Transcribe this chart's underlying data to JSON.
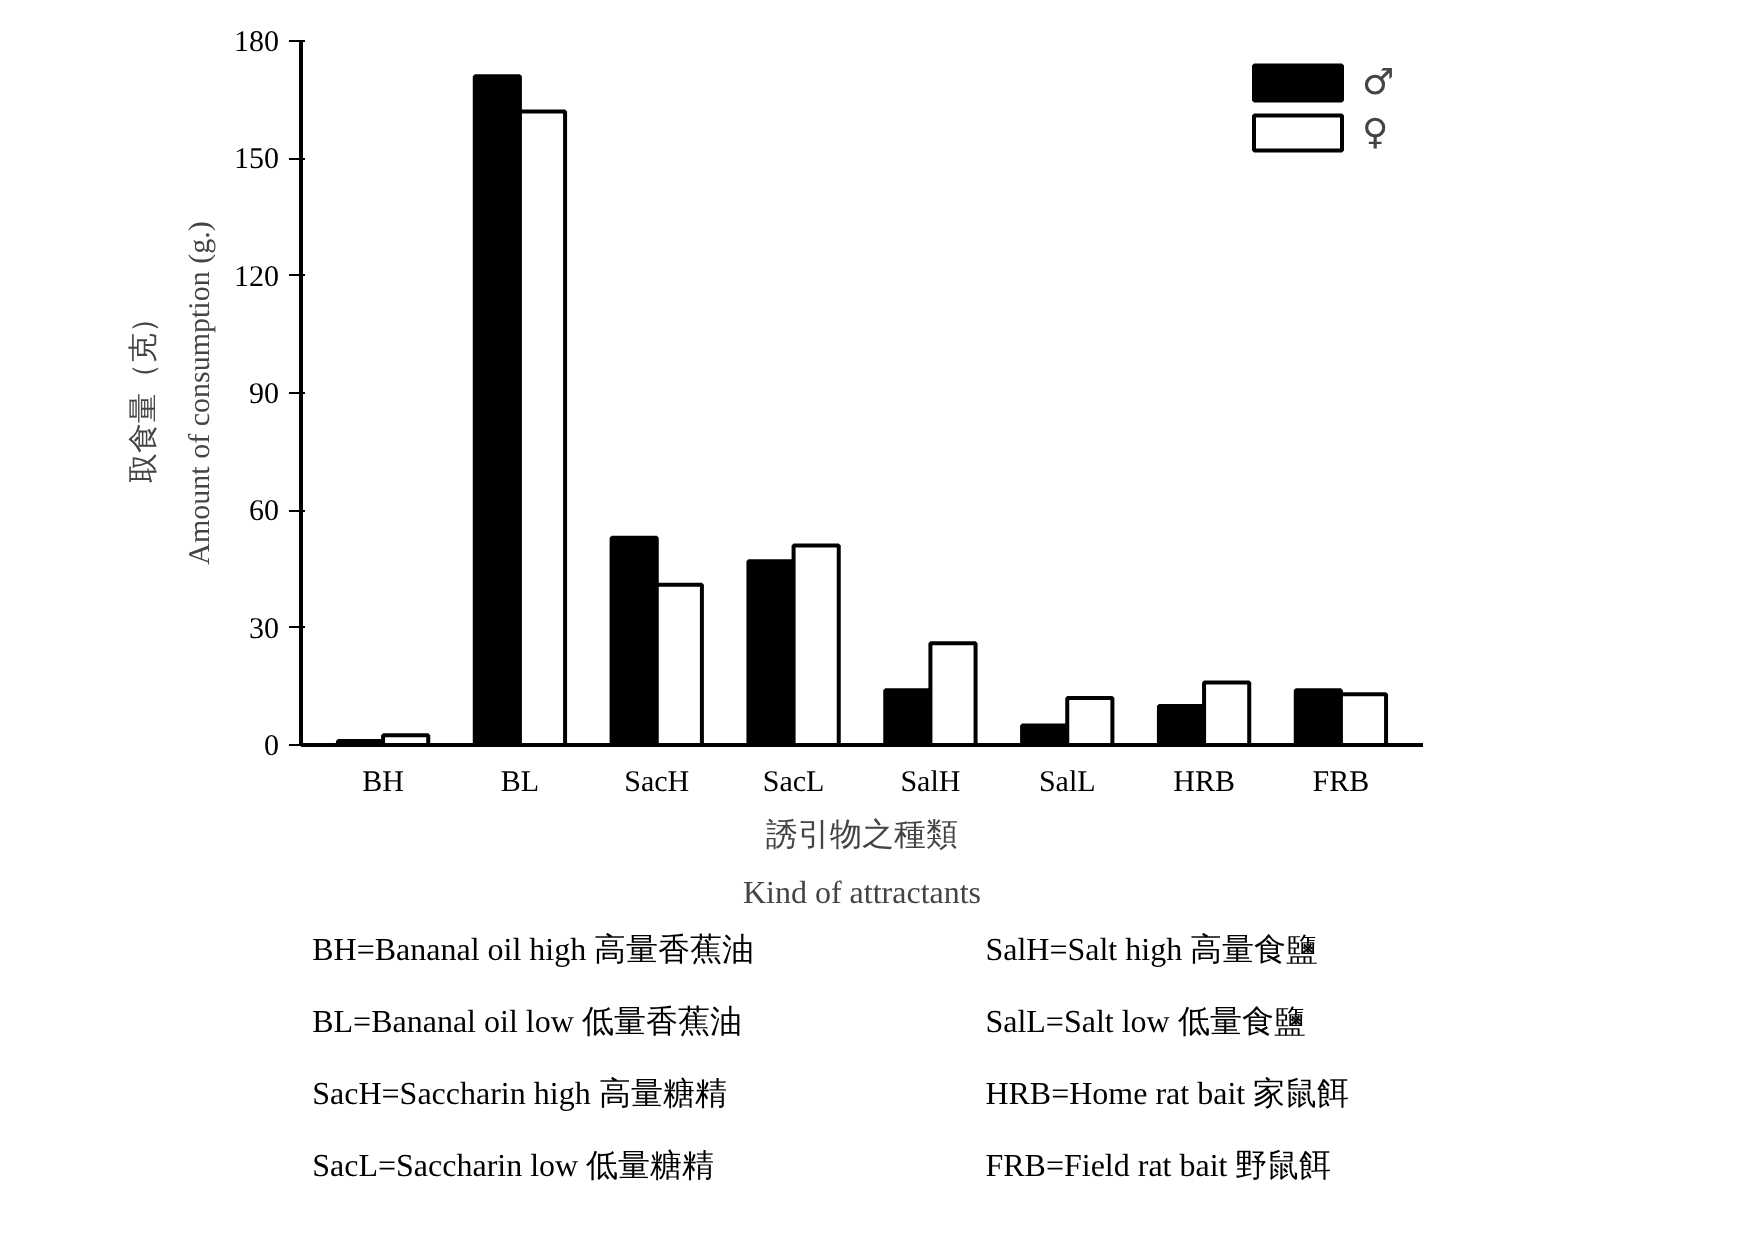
{
  "chart_data": {
    "type": "bar",
    "categories": [
      "BH",
      "BL",
      "SacH",
      "SacL",
      "SalH",
      "SalL",
      "HRB",
      "FRB"
    ],
    "series": [
      {
        "name": "♂",
        "color": "#000000",
        "values": [
          1,
          171,
          53,
          47,
          14,
          5,
          10,
          14
        ]
      },
      {
        "name": "♀",
        "color": "#ffffff",
        "values": [
          2.5,
          162,
          41,
          51,
          26,
          12,
          16,
          13
        ]
      }
    ],
    "ylabel": "Amount of consumption (g.)\n取食量（克）",
    "xlabel": "誘引物之種類\nKind of attractants",
    "ylim": [
      0,
      180
    ],
    "yticks": [
      0,
      30,
      60,
      90,
      120,
      150,
      180
    ],
    "legend": "top right",
    "annotations": [
      "BH=Bananal oil high 高量香蕉油",
      "BL=Bananal oil low 低量香蕉油",
      "SacH=Saccharin high 高量糖精",
      "SacL=Saccharin low 低量糖精",
      "SalH=Salt high 高量食鹽",
      "SalL=Salt low 低量食鹽",
      "HRB=Home rat bait 家鼠餌",
      "FRB=Field rat bait 野鼠餌"
    ]
  }
}
